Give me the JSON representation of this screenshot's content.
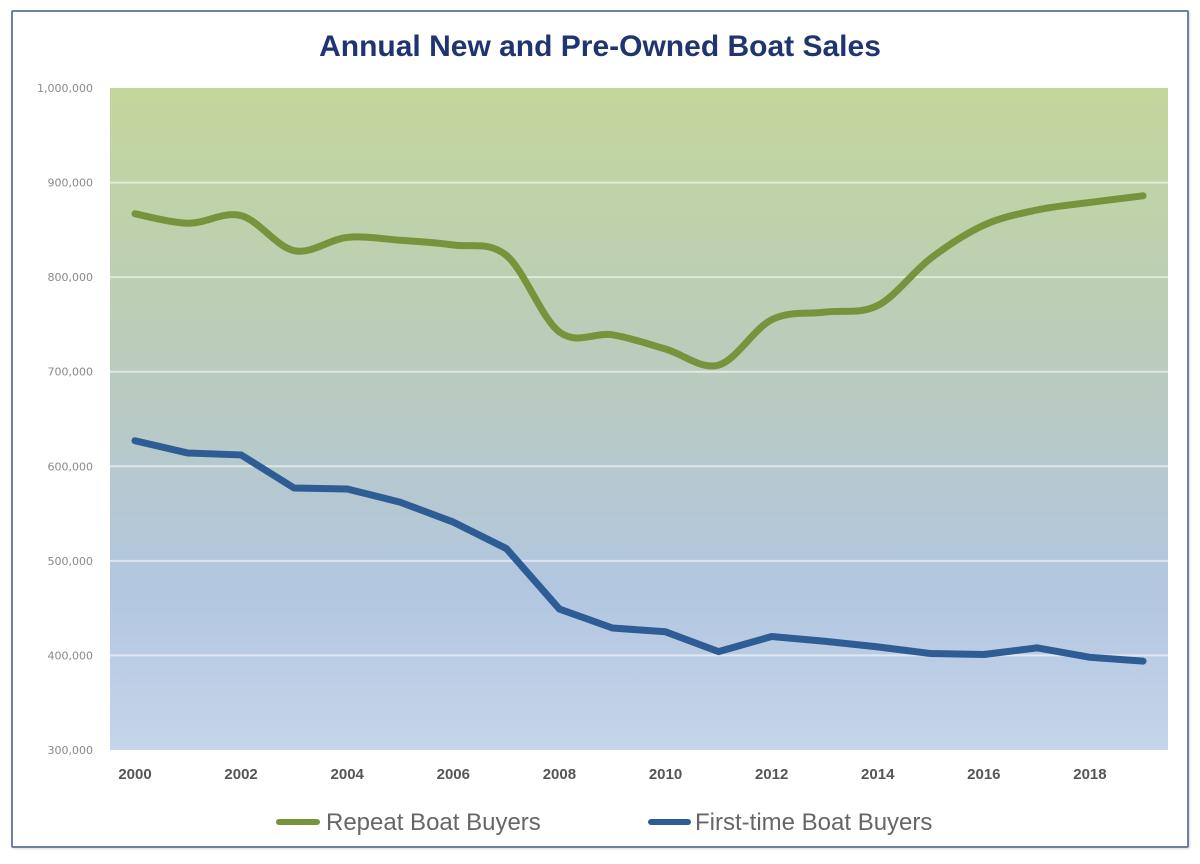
{
  "chart_data": {
    "type": "line",
    "title": "Annual New and Pre-Owned Boat Sales",
    "xlabel": "",
    "ylabel": "",
    "x": [
      2000,
      2001,
      2002,
      2003,
      2004,
      2005,
      2006,
      2007,
      2008,
      2009,
      2010,
      2011,
      2012,
      2013,
      2014,
      2015,
      2016,
      2017,
      2018,
      2019
    ],
    "x_tick_labels": [
      "2000",
      "2002",
      "2004",
      "2006",
      "2008",
      "2010",
      "2012",
      "2014",
      "2016",
      "2018"
    ],
    "y_tick_labels": [
      "1,000,000",
      "900,000",
      "800,000",
      "700,000",
      "600,000",
      "500,000",
      "400,000",
      "300,000"
    ],
    "ylim": [
      300000,
      1000000
    ],
    "y_tick_step": 100000,
    "grid": true,
    "legend_position": "bottom",
    "background_gradient": {
      "top": "#c3d69b",
      "bottom": "#c5d5ea"
    },
    "series": [
      {
        "name": "Repeat Boat Buyers",
        "color": "#77933c",
        "smooth": true,
        "values": [
          867000,
          857000,
          865000,
          828000,
          842000,
          839000,
          834000,
          823000,
          742000,
          739000,
          724000,
          707000,
          755000,
          763000,
          770000,
          820000,
          855000,
          871000,
          879000,
          886000
        ]
      },
      {
        "name": "First-time Boat Buyers",
        "color": "#2e5c94",
        "smooth": false,
        "values": [
          627000,
          614000,
          612000,
          577000,
          576000,
          562000,
          541000,
          513000,
          449000,
          429000,
          425000,
          404000,
          420000,
          415000,
          409000,
          402000,
          401000,
          408000,
          398000,
          394000
        ]
      }
    ]
  }
}
